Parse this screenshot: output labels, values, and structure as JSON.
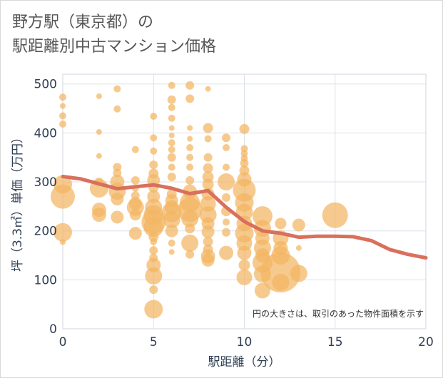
{
  "title_line1": "野方駅（東京都）の",
  "title_line2": "駅距離別中古マンション価格",
  "note": "円の大きさは、取引のあった物件面積を示す",
  "colors": {
    "bubble": "#f2b563",
    "line": "#d9705c",
    "grid": "#dbe0e8",
    "axis": "#2f3f54"
  },
  "chart_data": {
    "type": "scatter",
    "xlabel": "駅距離（分）",
    "ylabel": "坪（3.3㎡）単価（万円）",
    "xlim": [
      0,
      20
    ],
    "ylim": [
      0,
      520
    ],
    "xticks": [
      "0",
      "5",
      "10",
      "15",
      "20"
    ],
    "yticks": [
      "0",
      "100",
      "200",
      "300",
      "400",
      "500"
    ],
    "bubbles": [
      {
        "x": 0,
        "y": 473,
        "s": 5
      },
      {
        "x": 0,
        "y": 455,
        "s": 4
      },
      {
        "x": 0,
        "y": 435,
        "s": 5
      },
      {
        "x": 0,
        "y": 418,
        "s": 5
      },
      {
        "x": 0,
        "y": 295,
        "s": 13
      },
      {
        "x": 0,
        "y": 270,
        "s": 17
      },
      {
        "x": 0,
        "y": 197,
        "s": 13
      },
      {
        "x": 0,
        "y": 177,
        "s": 4
      },
      {
        "x": 2,
        "y": 475,
        "s": 4
      },
      {
        "x": 2,
        "y": 402,
        "s": 4
      },
      {
        "x": 2,
        "y": 353,
        "s": 4
      },
      {
        "x": 2,
        "y": 300,
        "s": 6
      },
      {
        "x": 2,
        "y": 287,
        "s": 13
      },
      {
        "x": 2,
        "y": 243,
        "s": 10
      },
      {
        "x": 2,
        "y": 233,
        "s": 10
      },
      {
        "x": 3,
        "y": 490,
        "s": 5
      },
      {
        "x": 3,
        "y": 449,
        "s": 5
      },
      {
        "x": 3,
        "y": 330,
        "s": 6
      },
      {
        "x": 3,
        "y": 318,
        "s": 6
      },
      {
        "x": 3,
        "y": 300,
        "s": 10
      },
      {
        "x": 3,
        "y": 281,
        "s": 12
      },
      {
        "x": 3,
        "y": 265,
        "s": 9
      },
      {
        "x": 3,
        "y": 228,
        "s": 9
      },
      {
        "x": 4,
        "y": 366,
        "s": 5
      },
      {
        "x": 4,
        "y": 303,
        "s": 6
      },
      {
        "x": 4,
        "y": 287,
        "s": 5
      },
      {
        "x": 4,
        "y": 272,
        "s": 6
      },
      {
        "x": 4,
        "y": 256,
        "s": 9
      },
      {
        "x": 4,
        "y": 248,
        "s": 12
      },
      {
        "x": 4,
        "y": 233,
        "s": 8
      },
      {
        "x": 4,
        "y": 195,
        "s": 9
      },
      {
        "x": 5,
        "y": 434,
        "s": 5
      },
      {
        "x": 5,
        "y": 390,
        "s": 5
      },
      {
        "x": 5,
        "y": 363,
        "s": 5
      },
      {
        "x": 5,
        "y": 335,
        "s": 6
      },
      {
        "x": 5,
        "y": 317,
        "s": 7
      },
      {
        "x": 5,
        "y": 303,
        "s": 9
      },
      {
        "x": 5,
        "y": 288,
        "s": 7
      },
      {
        "x": 5,
        "y": 270,
        "s": 9
      },
      {
        "x": 5,
        "y": 248,
        "s": 12
      },
      {
        "x": 5,
        "y": 232,
        "s": 14
      },
      {
        "x": 5,
        "y": 218,
        "s": 17
      },
      {
        "x": 5,
        "y": 208,
        "s": 14
      },
      {
        "x": 5,
        "y": 188,
        "s": 7
      },
      {
        "x": 5,
        "y": 178,
        "s": 5
      },
      {
        "x": 5,
        "y": 160,
        "s": 6
      },
      {
        "x": 5,
        "y": 145,
        "s": 6
      },
      {
        "x": 5,
        "y": 130,
        "s": 10
      },
      {
        "x": 5,
        "y": 108,
        "s": 12
      },
      {
        "x": 5,
        "y": 80,
        "s": 6
      },
      {
        "x": 5,
        "y": 40,
        "s": 13
      },
      {
        "x": 6,
        "y": 497,
        "s": 5
      },
      {
        "x": 6,
        "y": 468,
        "s": 6
      },
      {
        "x": 6,
        "y": 452,
        "s": 5
      },
      {
        "x": 6,
        "y": 430,
        "s": 5
      },
      {
        "x": 6,
        "y": 410,
        "s": 4
      },
      {
        "x": 6,
        "y": 395,
        "s": 4
      },
      {
        "x": 6,
        "y": 380,
        "s": 5
      },
      {
        "x": 6,
        "y": 366,
        "s": 5
      },
      {
        "x": 6,
        "y": 350,
        "s": 6
      },
      {
        "x": 6,
        "y": 330,
        "s": 5
      },
      {
        "x": 6,
        "y": 310,
        "s": 6
      },
      {
        "x": 6,
        "y": 275,
        "s": 7
      },
      {
        "x": 6,
        "y": 262,
        "s": 9
      },
      {
        "x": 6,
        "y": 248,
        "s": 10
      },
      {
        "x": 6,
        "y": 238,
        "s": 14
      },
      {
        "x": 6,
        "y": 223,
        "s": 12
      },
      {
        "x": 6,
        "y": 200,
        "s": 9
      },
      {
        "x": 6,
        "y": 175,
        "s": 5
      },
      {
        "x": 6,
        "y": 157,
        "s": 4
      },
      {
        "x": 7,
        "y": 497,
        "s": 6
      },
      {
        "x": 7,
        "y": 470,
        "s": 6
      },
      {
        "x": 7,
        "y": 410,
        "s": 4
      },
      {
        "x": 7,
        "y": 388,
        "s": 4
      },
      {
        "x": 7,
        "y": 370,
        "s": 5
      },
      {
        "x": 7,
        "y": 350,
        "s": 5
      },
      {
        "x": 7,
        "y": 330,
        "s": 5
      },
      {
        "x": 7,
        "y": 303,
        "s": 6
      },
      {
        "x": 7,
        "y": 280,
        "s": 10
      },
      {
        "x": 7,
        "y": 258,
        "s": 14
      },
      {
        "x": 7,
        "y": 243,
        "s": 17
      },
      {
        "x": 7,
        "y": 225,
        "s": 12
      },
      {
        "x": 7,
        "y": 205,
        "s": 7
      },
      {
        "x": 7,
        "y": 175,
        "s": 12
      },
      {
        "x": 7,
        "y": 152,
        "s": 6
      },
      {
        "x": 8,
        "y": 490,
        "s": 4
      },
      {
        "x": 8,
        "y": 410,
        "s": 7
      },
      {
        "x": 8,
        "y": 388,
        "s": 5
      },
      {
        "x": 8,
        "y": 350,
        "s": 6
      },
      {
        "x": 8,
        "y": 328,
        "s": 7
      },
      {
        "x": 8,
        "y": 310,
        "s": 8
      },
      {
        "x": 8,
        "y": 295,
        "s": 8
      },
      {
        "x": 8,
        "y": 275,
        "s": 9
      },
      {
        "x": 8,
        "y": 255,
        "s": 11
      },
      {
        "x": 8,
        "y": 233,
        "s": 12
      },
      {
        "x": 8,
        "y": 215,
        "s": 9
      },
      {
        "x": 8,
        "y": 198,
        "s": 9
      },
      {
        "x": 8,
        "y": 178,
        "s": 7
      },
      {
        "x": 8,
        "y": 162,
        "s": 7
      },
      {
        "x": 8,
        "y": 148,
        "s": 10
      },
      {
        "x": 8,
        "y": 140,
        "s": 9
      },
      {
        "x": 9,
        "y": 390,
        "s": 6
      },
      {
        "x": 9,
        "y": 370,
        "s": 5
      },
      {
        "x": 9,
        "y": 330,
        "s": 5
      },
      {
        "x": 9,
        "y": 300,
        "s": 12
      },
      {
        "x": 9,
        "y": 268,
        "s": 6
      },
      {
        "x": 9,
        "y": 240,
        "s": 7
      },
      {
        "x": 9,
        "y": 218,
        "s": 5
      },
      {
        "x": 9,
        "y": 197,
        "s": 6
      },
      {
        "x": 9,
        "y": 155,
        "s": 10
      },
      {
        "x": 10,
        "y": 408,
        "s": 7
      },
      {
        "x": 10,
        "y": 368,
        "s": 5
      },
      {
        "x": 10,
        "y": 358,
        "s": 5
      },
      {
        "x": 10,
        "y": 348,
        "s": 5
      },
      {
        "x": 10,
        "y": 338,
        "s": 6
      },
      {
        "x": 10,
        "y": 323,
        "s": 7
      },
      {
        "x": 10,
        "y": 305,
        "s": 10
      },
      {
        "x": 10,
        "y": 283,
        "s": 16
      },
      {
        "x": 10,
        "y": 258,
        "s": 13
      },
      {
        "x": 10,
        "y": 238,
        "s": 12
      },
      {
        "x": 10,
        "y": 215,
        "s": 11
      },
      {
        "x": 10,
        "y": 195,
        "s": 13
      },
      {
        "x": 10,
        "y": 175,
        "s": 11
      },
      {
        "x": 10,
        "y": 155,
        "s": 10
      },
      {
        "x": 10,
        "y": 130,
        "s": 8
      },
      {
        "x": 10,
        "y": 105,
        "s": 11
      },
      {
        "x": 11,
        "y": 230,
        "s": 14
      },
      {
        "x": 11,
        "y": 205,
        "s": 12
      },
      {
        "x": 11,
        "y": 185,
        "s": 10
      },
      {
        "x": 11,
        "y": 165,
        "s": 12
      },
      {
        "x": 11,
        "y": 150,
        "s": 10
      },
      {
        "x": 11,
        "y": 135,
        "s": 14
      },
      {
        "x": 11,
        "y": 112,
        "s": 12
      },
      {
        "x": 11,
        "y": 78,
        "s": 11
      },
      {
        "x": 12,
        "y": 215,
        "s": 8
      },
      {
        "x": 12,
        "y": 185,
        "s": 11
      },
      {
        "x": 12,
        "y": 165,
        "s": 10
      },
      {
        "x": 12,
        "y": 150,
        "s": 13
      },
      {
        "x": 12,
        "y": 115,
        "s": 28
      },
      {
        "x": 12,
        "y": 95,
        "s": 12
      },
      {
        "x": 13,
        "y": 212,
        "s": 9
      },
      {
        "x": 13,
        "y": 165,
        "s": 4
      },
      {
        "x": 13,
        "y": 113,
        "s": 12
      },
      {
        "x": 15,
        "y": 232,
        "s": 18
      }
    ],
    "line": {
      "x": [
        0,
        1,
        2,
        3,
        4,
        5,
        6,
        7,
        8,
        9,
        10,
        11,
        12,
        13,
        14,
        15,
        16,
        17,
        18,
        19,
        20
      ],
      "y": [
        311,
        306,
        296,
        286,
        290,
        294,
        287,
        276,
        282,
        248,
        219,
        200,
        195,
        187,
        189,
        189,
        188,
        180,
        162,
        152,
        145
      ]
    }
  }
}
